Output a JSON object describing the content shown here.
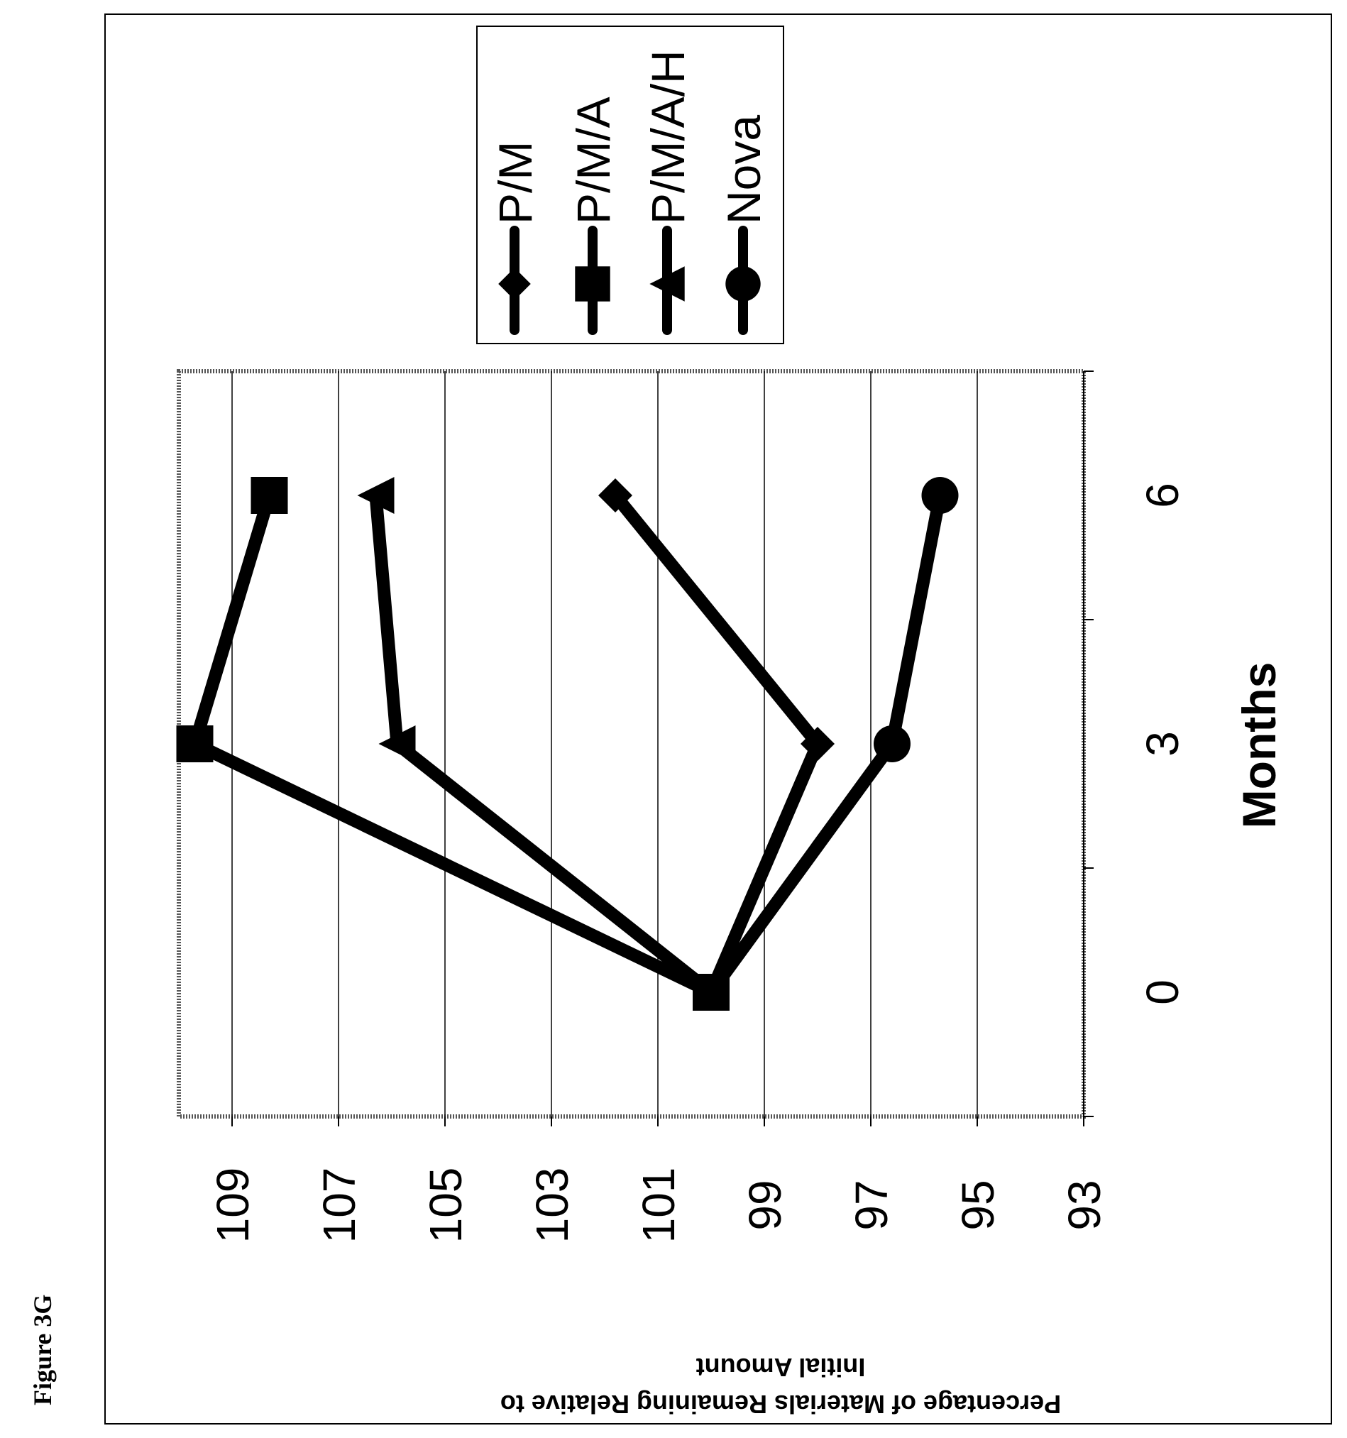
{
  "figure_label": "Figure 3G",
  "chart_data": {
    "type": "line",
    "title": "",
    "xlabel": "Months",
    "ylabel": "Percentage of Materials Remaining Relative to Initial Amount",
    "ylabel_lines": [
      "Percentage of Materials Remaining Relative to",
      "Initial Amount"
    ],
    "x_ticks": [
      0,
      3,
      6
    ],
    "y_ticks": [
      93,
      95,
      97,
      99,
      101,
      103,
      105,
      107,
      109
    ],
    "ylim": [
      93,
      110
    ],
    "xlim": [
      -1.5,
      7.5
    ],
    "grid": true,
    "orientation": "rotated 90° counter-clockwise",
    "legend_position": "top-right",
    "series": [
      {
        "name": "P/M",
        "marker": "diamond",
        "x": [
          0,
          3,
          6
        ],
        "y": [
          100,
          98,
          101.8
        ]
      },
      {
        "name": "P/M/A",
        "marker": "square",
        "x": [
          0,
          3,
          6
        ],
        "y": [
          100,
          109.7,
          108.3
        ]
      },
      {
        "name": "P/M/A/H",
        "marker": "triangle",
        "x": [
          0,
          3,
          6
        ],
        "y": [
          100,
          105.9,
          106.3
        ]
      },
      {
        "name": "Nova",
        "marker": "circle",
        "x": [
          0,
          3,
          6
        ],
        "y": [
          100,
          96.6,
          95.7
        ]
      }
    ]
  }
}
